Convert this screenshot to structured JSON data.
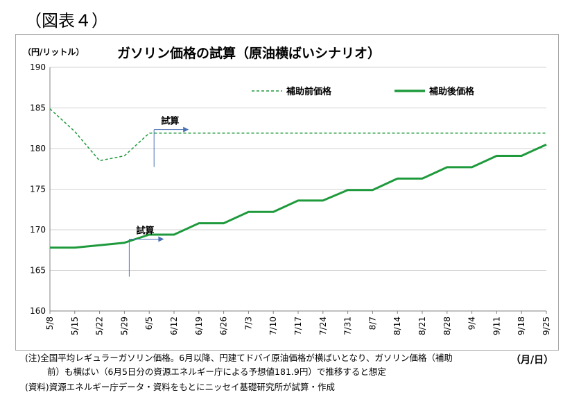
{
  "figure_label": "（図表４）",
  "chart_data": {
    "type": "line",
    "title": "ガソリン価格の試算（原油横ばいシナリオ）",
    "ylabel": "（円/リットル）",
    "xlabel": "（月/日）",
    "ylim": [
      160,
      190
    ],
    "yticks": [
      160,
      165,
      170,
      175,
      180,
      185,
      190
    ],
    "categories": [
      "5/8",
      "5/15",
      "5/22",
      "5/29",
      "6/5",
      "6/12",
      "6/19",
      "6/26",
      "7/3",
      "7/10",
      "7/17",
      "7/24",
      "7/31",
      "8/7",
      "8/14",
      "8/21",
      "8/28",
      "9/4",
      "9/11",
      "9/18",
      "9/25"
    ],
    "grid": true,
    "legend_position": "top-right",
    "series": [
      {
        "name": "補助前価格",
        "style": "dashed",
        "color": "#1e9a3c",
        "values": [
          184.9,
          182.1,
          178.5,
          179.1,
          181.9,
          181.9,
          181.9,
          181.9,
          181.9,
          181.9,
          181.9,
          181.9,
          181.9,
          181.9,
          181.9,
          181.9,
          181.9,
          181.9,
          181.9,
          181.9,
          181.9
        ]
      },
      {
        "name": "補助後価格",
        "style": "solid",
        "color": "#1e9a3c",
        "values": [
          167.8,
          167.8,
          168.1,
          168.4,
          169.4,
          169.4,
          170.8,
          170.8,
          172.2,
          172.2,
          173.6,
          173.6,
          174.9,
          174.9,
          176.3,
          176.3,
          177.7,
          177.7,
          179.1,
          179.1,
          180.5
        ]
      }
    ],
    "annotations": [
      {
        "text": "試算",
        "category": "6/5",
        "level": 182
      },
      {
        "text": "試算",
        "category": "5/29",
        "level": 168.5
      }
    ]
  },
  "notes": {
    "line1": "(注)全国平均レギュラーガソリン価格。6月以降、円建てドバイ原油価格が横ばいとなり、ガソリン価格（補助",
    "line2": "前）も横ばい（6月5日分の資源エネルギー庁による予想値181.9円）で推移すると想定",
    "line3": "(資料)資源エネルギー庁データ・資料をもとにニッセイ基礎研究所が試算・作成"
  }
}
